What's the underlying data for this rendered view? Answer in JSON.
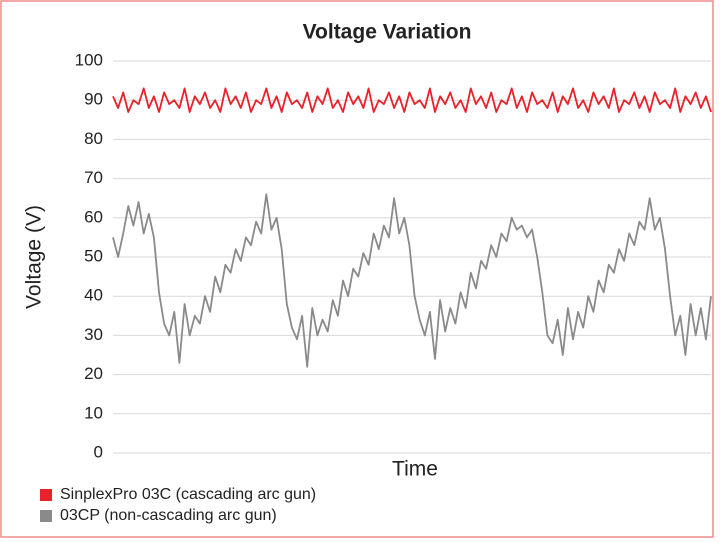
{
  "chart_data": {
    "type": "line",
    "title": "Voltage Variation",
    "y_label": "Voltage (V)",
    "x_label": "Time",
    "ylim": [
      0,
      100
    ],
    "yticks": [
      0,
      10,
      20,
      30,
      40,
      50,
      60,
      70,
      80,
      90,
      100
    ],
    "grid": true,
    "legend": "bottom-left",
    "series": [
      {
        "name": "SinplexPro 03C (cascading arc gun)",
        "color": "#e8212b",
        "values": [
          91,
          88,
          92,
          87,
          90,
          89,
          93,
          88,
          91,
          87,
          92,
          89,
          90,
          88,
          93,
          87,
          91,
          89,
          92,
          88,
          90,
          87,
          93,
          89,
          91,
          88,
          92,
          87,
          90,
          89,
          93,
          88,
          91,
          87,
          92,
          89,
          90,
          88,
          92,
          87,
          91,
          89,
          93,
          88,
          90,
          87,
          92,
          89,
          91,
          88,
          93,
          87,
          90,
          89,
          92,
          88,
          91,
          87,
          92,
          89,
          90,
          88,
          93,
          87,
          91,
          89,
          92,
          88,
          90,
          87,
          93,
          89,
          91,
          88,
          92,
          87,
          90,
          89,
          93,
          88,
          91,
          87,
          92,
          89,
          90,
          88,
          92,
          87,
          91,
          89,
          93,
          88,
          90,
          87,
          92,
          89,
          91,
          88,
          93,
          87,
          90,
          89,
          92,
          88,
          91,
          87,
          92,
          89,
          90,
          88,
          93,
          87,
          91,
          89,
          92,
          88,
          91,
          87
        ]
      },
      {
        "name": "03CP (non-cascading arc gun)",
        "color": "#8a8a8a",
        "values": [
          55,
          50,
          56,
          63,
          58,
          64,
          56,
          61,
          55,
          41,
          33,
          30,
          36,
          23,
          38,
          30,
          35,
          33,
          40,
          36,
          45,
          41,
          48,
          46,
          52,
          49,
          55,
          53,
          59,
          56,
          66,
          57,
          60,
          52,
          38,
          32,
          29,
          35,
          22,
          37,
          30,
          34,
          31,
          39,
          35,
          44,
          40,
          47,
          45,
          51,
          48,
          56,
          52,
          58,
          55,
          65,
          56,
          60,
          53,
          40,
          34,
          30,
          36,
          24,
          39,
          31,
          37,
          33,
          41,
          37,
          46,
          42,
          49,
          47,
          53,
          50,
          56,
          54,
          60,
          57,
          58,
          55,
          57,
          50,
          41,
          30,
          28,
          34,
          25,
          37,
          29,
          36,
          32,
          40,
          36,
          44,
          41,
          48,
          46,
          52,
          49,
          56,
          53,
          59,
          57,
          65,
          57,
          60,
          52,
          40,
          30,
          35,
          25,
          38,
          30,
          37,
          29,
          40
        ]
      }
    ]
  }
}
